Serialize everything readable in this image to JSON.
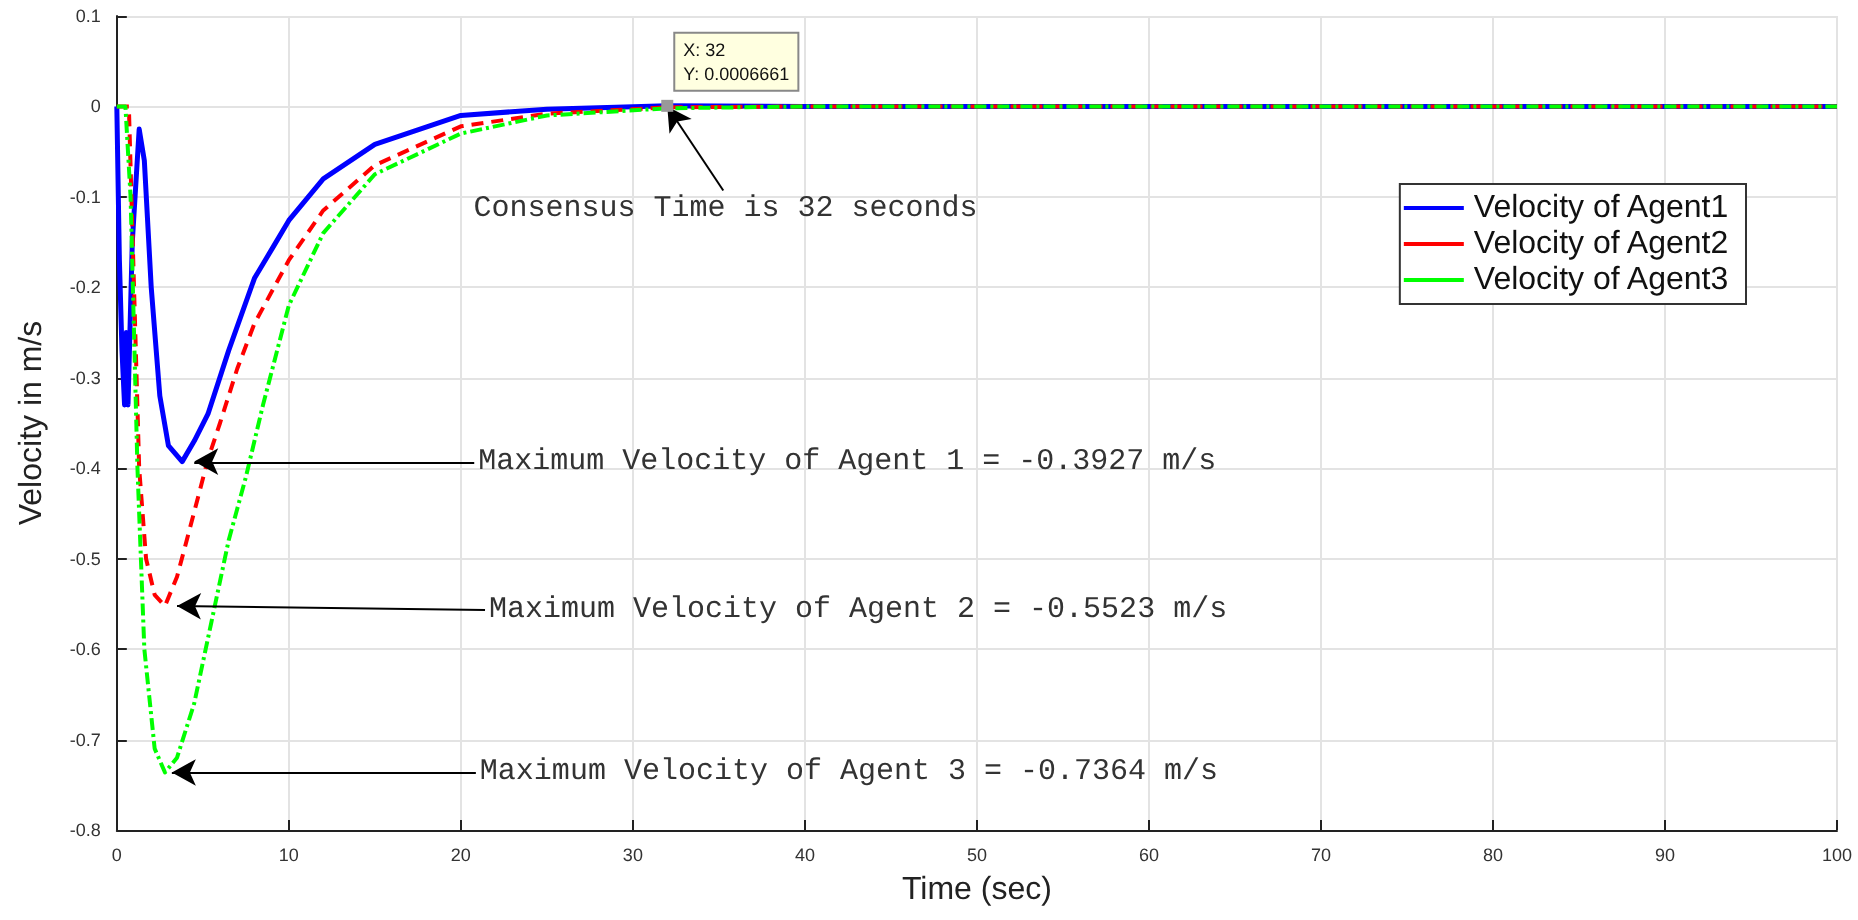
{
  "chart_data": {
    "type": "line",
    "xlabel": "Time (sec)",
    "ylabel": "Velocity in m/s",
    "xlim": [
      0,
      100
    ],
    "xticks": [
      0,
      10,
      20,
      30,
      40,
      50,
      60,
      70,
      80,
      90,
      100
    ],
    "ylim": [
      -0.8,
      0.1
    ],
    "yticks": [
      -0.8,
      -0.7,
      -0.6,
      -0.5,
      -0.4,
      -0.3,
      -0.2,
      -0.1,
      0,
      0.1
    ],
    "grid": true,
    "legend": "top right",
    "marker": "none",
    "series": [
      {
        "name": "Velocity of Agent1",
        "color": "#0000ff",
        "line_style": "solid",
        "x": [
          0,
          0.15,
          0.3,
          0.45,
          0.55,
          0.65,
          0.9,
          1.3,
          1.6,
          2.0,
          2.5,
          3.0,
          3.8,
          4.5,
          5.3,
          6.5,
          8,
          9.1,
          10,
          12,
          15,
          20,
          25,
          32,
          40,
          60,
          80,
          100
        ],
        "values": [
          0,
          -0.17,
          -0.27,
          -0.33,
          -0.25,
          -0.33,
          -0.15,
          -0.025,
          -0.06,
          -0.2,
          -0.32,
          -0.375,
          -0.3927,
          -0.37,
          -0.34,
          -0.27,
          -0.19,
          -0.155,
          -0.126,
          -0.08,
          -0.042,
          -0.01,
          -0.003,
          0.0006661,
          0,
          0,
          0,
          0
        ]
      },
      {
        "name": "Velocity of Agent2",
        "color": "#ff0000",
        "line_style": "dashed",
        "x": [
          0,
          0.7,
          1.0,
          1.3,
          1.7,
          2.2,
          2.8,
          3.5,
          4.2,
          5.3,
          6,
          7,
          8,
          10,
          12,
          15,
          20,
          25,
          32,
          40,
          60,
          80,
          100
        ],
        "values": [
          0,
          0,
          -0.2,
          -0.4,
          -0.5,
          -0.54,
          -0.5523,
          -0.52,
          -0.47,
          -0.39,
          -0.35,
          -0.29,
          -0.24,
          -0.17,
          -0.115,
          -0.065,
          -0.022,
          -0.008,
          -0.001,
          0,
          0,
          0,
          0
        ]
      },
      {
        "name": "Velocity of Agent3",
        "color": "#00ff00",
        "line_style": "dashdot",
        "x": [
          0,
          0.5,
          0.8,
          1.2,
          1.6,
          2.2,
          2.8,
          3.5,
          4.5,
          5.5,
          6.5,
          7.5,
          8.5,
          10,
          12,
          15,
          20,
          25,
          32,
          40,
          60,
          80,
          100
        ],
        "values": [
          0,
          0,
          -0.1,
          -0.4,
          -0.6,
          -0.71,
          -0.7364,
          -0.72,
          -0.66,
          -0.57,
          -0.48,
          -0.41,
          -0.33,
          -0.22,
          -0.14,
          -0.075,
          -0.03,
          -0.01,
          -0.002,
          0,
          0,
          0,
          0
        ]
      }
    ],
    "annotations": [
      {
        "text": "X: 32\nY: 0.0006661",
        "x": 32,
        "y": 0.0006661
      },
      {
        "text": "Consensus Time is 32 seconds",
        "x": 32,
        "y": 0
      },
      {
        "text": "Maximum Velocity of Agent 1 = -0.3927 m/s",
        "x": 4.5,
        "y": -0.3927
      },
      {
        "text": "Maximum Velocity of Agent 2 = -0.5523 m/s",
        "x": 3.5,
        "y": -0.5523
      },
      {
        "text": "Maximum Velocity of Agent 3 = -0.7364 m/s",
        "x": 3.2,
        "y": -0.7364
      }
    ]
  }
}
